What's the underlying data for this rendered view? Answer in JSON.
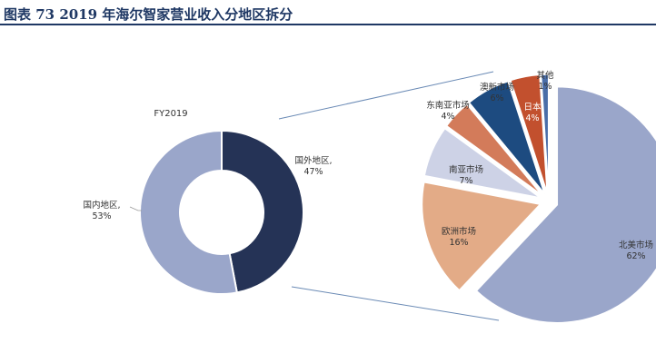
{
  "page": {
    "title": "图表 73   2019 年海尔智家营业收入分地区拆分"
  },
  "chart_data": [
    {
      "type": "pie",
      "variant": "donut",
      "title": "FY2019",
      "slices": [
        {
          "label": "国外地区,",
          "value": 47,
          "value_label": "47%",
          "color": "#253356"
        },
        {
          "label": "国内地区,",
          "value": 53,
          "value_label": "53%",
          "color": "#9aa6ca"
        }
      ]
    },
    {
      "type": "pie",
      "variant": "exploded",
      "title": "",
      "slices": [
        {
          "label": "北美市场",
          "value": 62,
          "value_label": "62%",
          "color": "#9aa6ca"
        },
        {
          "label": "欧洲市场",
          "value": 16,
          "value_label": "16%",
          "color": "#e3ab87"
        },
        {
          "label": "南亚市场",
          "value": 7,
          "value_label": "7%",
          "color": "#cdd2e6"
        },
        {
          "label": "东南亚市场",
          "value": 4,
          "value_label": "4%",
          "color": "#d37b5a"
        },
        {
          "label": "澳新市场",
          "value": 6,
          "value_label": "6%",
          "color": "#1d4b80"
        },
        {
          "label": "日本",
          "value": 4,
          "value_label": "4%",
          "color": "#c2502e"
        },
        {
          "label": "其他",
          "value": 1,
          "value_label": "1%",
          "color": "#4a6ea8"
        }
      ]
    }
  ]
}
